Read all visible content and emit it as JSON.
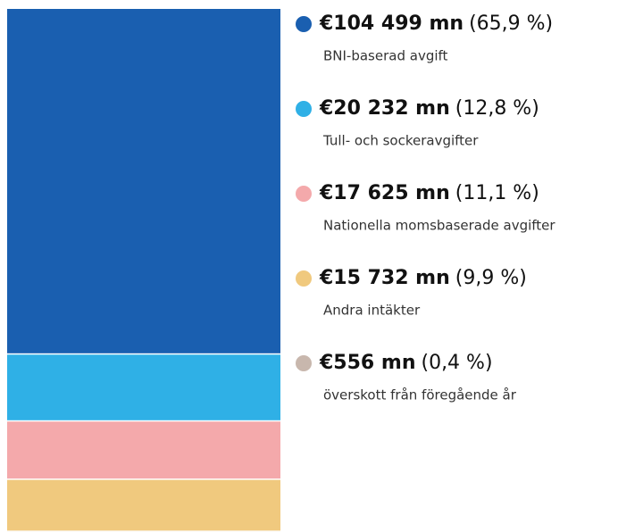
{
  "chart_data": {
    "type": "stacked-bar",
    "series": [
      {
        "name": "BNI-baserad avgift",
        "color": "#1a5fb0",
        "values": [
          104499
        ],
        "value_labels": [
          "€104 499 mn"
        ],
        "share": 65.9,
        "share_label": "(65,9 %)"
      },
      {
        "name": "Tull- och sockeravgifter",
        "color": "#2fb0e6",
        "values": [
          20232
        ],
        "value_labels": [
          "€20 232 mn"
        ],
        "share": 12.8,
        "share_label": "(12,8 %)"
      },
      {
        "name": "Nationella momsbaserade avgifter",
        "color": "#f4a9ab",
        "values": [
          17625
        ],
        "value_labels": [
          "€17 625 mn"
        ],
        "share": 11.1,
        "share_label": "(11,1 %)"
      },
      {
        "name": "Andra intäkter",
        "color": "#f0c97e",
        "values": [
          15732
        ],
        "value_labels": [
          "€15 732 mn"
        ],
        "share": 9.9,
        "share_label": "(9,9 %)"
      },
      {
        "name": "överskott från föregående år",
        "color": "#c8b7ad",
        "values": [
          556
        ],
        "value_labels": [
          "€556 mn"
        ],
        "share": 0.4,
        "share_label": "(0,4 %)"
      }
    ]
  }
}
